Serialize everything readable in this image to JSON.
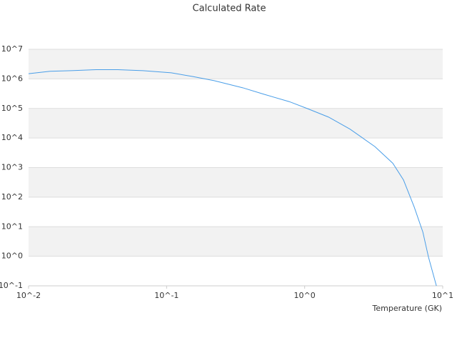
{
  "chart_data": {
    "type": "line",
    "title": "Calculated Rate",
    "x_label": "Temperature (GK)",
    "x": [
      0.01,
      0.0143,
      0.0204,
      0.031,
      0.0443,
      0.0673,
      0.108,
      0.155,
      0.221,
      0.356,
      0.509,
      0.773,
      1.04,
      1.49,
      2.13,
      3.23,
      4.35,
      5.2,
      6.22,
      7.18,
      7.89,
      9.0
    ],
    "series": [
      {
        "name": "Calculated Rate",
        "color": "#4a9ee8",
        "values": [
          1500000,
          1800000,
          1900000,
          2050000,
          2050000,
          1900000,
          1600000,
          1200000,
          870000,
          500000,
          300000,
          170000,
          100000,
          51000,
          20000,
          5100,
          1400,
          380,
          46,
          6.6,
          0.93,
          0.1
        ]
      }
    ],
    "xlog": true,
    "ylog": true,
    "xlim": [
      0.01,
      10
    ],
    "ylim": [
      0.1,
      10000000
    ],
    "xticks": [
      {
        "value": 0.01,
        "label": "10^-2"
      },
      {
        "value": 0.1,
        "label": "10^-1"
      },
      {
        "value": 1,
        "label": "10^0"
      },
      {
        "value": 10,
        "label": "10^1"
      }
    ],
    "yticks": [
      {
        "value": 0.1,
        "label": "10^-1"
      },
      {
        "value": 1,
        "label": "10^0"
      },
      {
        "value": 10,
        "label": "10^1"
      },
      {
        "value": 100,
        "label": "10^2"
      },
      {
        "value": 1000,
        "label": "10^3"
      },
      {
        "value": 10000,
        "label": "10^4"
      },
      {
        "value": 100000,
        "label": "10^5"
      },
      {
        "value": 1000000,
        "label": "10^6"
      },
      {
        "value": 10000000,
        "label": "10^7"
      }
    ],
    "grid": true,
    "band_color": "#f2f2f2"
  }
}
